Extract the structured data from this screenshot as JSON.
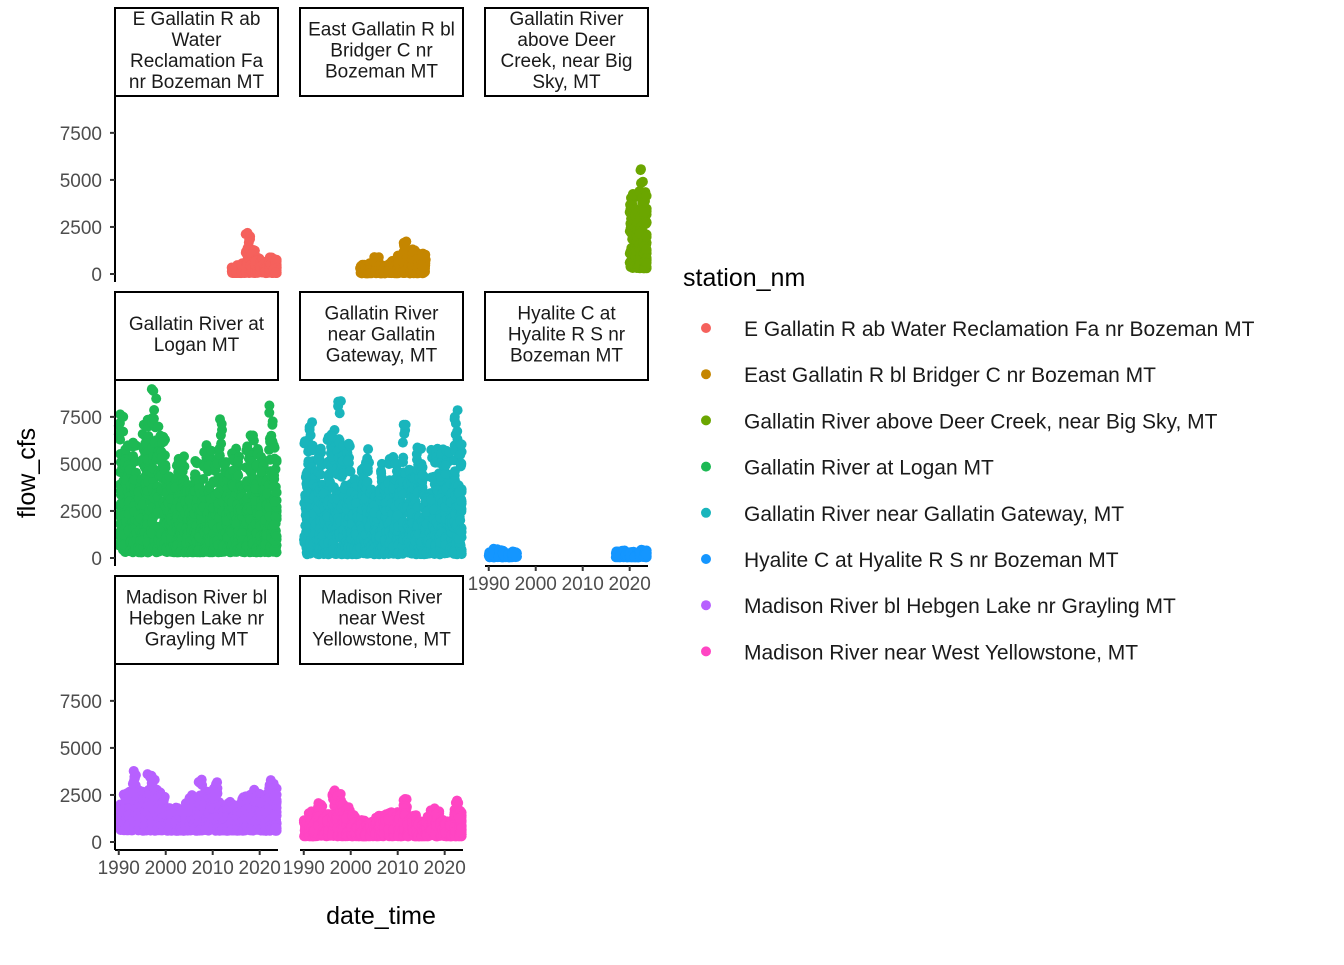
{
  "chart_data": {
    "type": "scatter",
    "facet_by": "station_nm",
    "xlabel": "date_time",
    "ylabel": "flow_cfs",
    "xlim": [
      1989.2,
      2023.9
    ],
    "ylim": [
      0,
      9300
    ],
    "x_ticks": [
      "1990",
      "2000",
      "2010",
      "2020"
    ],
    "y_ticks": [
      0,
      2500,
      5000,
      7500
    ],
    "legend": {
      "title": "station_nm",
      "position": "right"
    },
    "grid": false,
    "series": [
      {
        "name": "E Gallatin R ab Water Reclamation Fa nr Bozeman MT",
        "color": "#F5615C",
        "years": [
          2014,
          2015,
          2016,
          2017,
          2018,
          2019,
          2020,
          2021,
          2022,
          2023
        ],
        "annual_peak": [
          350,
          500,
          600,
          2200,
          1300,
          900,
          700,
          500,
          900,
          800
        ],
        "base": 50
      },
      {
        "name": "East Gallatin R bl Bridger C nr Bozeman MT",
        "color": "#C58600",
        "years": [
          2002,
          2003,
          2004,
          2005,
          2006,
          2007,
          2008,
          2009,
          2010,
          2011,
          2012,
          2013,
          2014,
          2015
        ],
        "annual_peak": [
          500,
          450,
          600,
          900,
          500,
          450,
          700,
          600,
          1100,
          1800,
          900,
          1400,
          1000,
          1100
        ],
        "base": 40
      },
      {
        "name": "Gallatin River above Deer Creek, near Big Sky, MT",
        "color": "#6BA600",
        "years": [
          2020,
          2021,
          2022,
          2023
        ],
        "annual_peak": [
          4300,
          3500,
          5600,
          4400
        ],
        "base": 300
      },
      {
        "name": "Gallatin River at Logan MT",
        "color": "#1DB954",
        "years": [
          1990,
          1991,
          1992,
          1993,
          1994,
          1995,
          1996,
          1997,
          1998,
          1999,
          2000,
          2001,
          2002,
          2003,
          2004,
          2005,
          2006,
          2007,
          2008,
          2009,
          2010,
          2011,
          2012,
          2013,
          2014,
          2015,
          2016,
          2017,
          2018,
          2019,
          2020,
          2021,
          2022,
          2023
        ],
        "annual_peak": [
          7900,
          6200,
          5000,
          6300,
          4200,
          7100,
          8100,
          9000,
          7200,
          6800,
          4500,
          3800,
          5300,
          5500,
          4200,
          4000,
          5200,
          4100,
          6000,
          5800,
          5300,
          7600,
          5100,
          4700,
          6300,
          5400,
          3900,
          6200,
          6700,
          5800,
          5700,
          4200,
          8200,
          6000
        ],
        "base": 300
      },
      {
        "name": "Gallatin River near Gallatin Gateway, MT",
        "color": "#19B5BC",
        "years": [
          1990,
          1991,
          1992,
          1993,
          1994,
          1995,
          1996,
          1997,
          1998,
          1999,
          2000,
          2001,
          2002,
          2003,
          2004,
          2005,
          2006,
          2007,
          2008,
          2009,
          2010,
          2011,
          2012,
          2013,
          2014,
          2015,
          2016,
          2017,
          2018,
          2019,
          2020,
          2021,
          2022,
          2023
        ],
        "annual_peak": [
          6300,
          7300,
          4600,
          6200,
          4000,
          6600,
          7000,
          8400,
          6100,
          6200,
          4200,
          3400,
          5000,
          5800,
          3800,
          3600,
          5000,
          3900,
          5400,
          5500,
          4800,
          7400,
          4900,
          4600,
          6100,
          5300,
          3600,
          5900,
          6100,
          5800,
          5900,
          4100,
          8100,
          6300
        ],
        "base": 200
      },
      {
        "name": "Hyalite C at Hyalite R S nr Bozeman MT",
        "color": "#1496FF",
        "years": [
          1990,
          1991,
          1992,
          1993,
          1994,
          1995,
          2017,
          2018,
          2019,
          2020,
          2021,
          2022,
          2023
        ],
        "annual_peak": [
          300,
          500,
          450,
          400,
          250,
          350,
          350,
          400,
          300,
          350,
          300,
          450,
          400
        ],
        "base": 40
      },
      {
        "name": "Madison River bl Hebgen Lake nr Grayling MT",
        "color": "#B760FF",
        "years": [
          1990,
          1991,
          1992,
          1993,
          1994,
          1995,
          1996,
          1997,
          1998,
          1999,
          2000,
          2001,
          2002,
          2003,
          2004,
          2005,
          2006,
          2007,
          2008,
          2009,
          2010,
          2011,
          2012,
          2013,
          2014,
          2015,
          2016,
          2017,
          2018,
          2019,
          2020,
          2021,
          2022,
          2023
        ],
        "annual_peak": [
          2000,
          2600,
          2700,
          3900,
          2800,
          2700,
          3800,
          3500,
          2900,
          2500,
          1800,
          1700,
          1900,
          1800,
          2100,
          2500,
          2400,
          3400,
          2700,
          2600,
          3200,
          2200,
          2000,
          2200,
          2100,
          1900,
          2400,
          2500,
          2800,
          2600,
          2400,
          2700,
          3300,
          2900
        ],
        "base": 600
      },
      {
        "name": "Madison River near West Yellowstone, MT",
        "color": "#FF45C3",
        "years": [
          1990,
          1991,
          1992,
          1993,
          1994,
          1995,
          1996,
          1997,
          1998,
          1999,
          2000,
          2001,
          2002,
          2003,
          2004,
          2005,
          2006,
          2007,
          2008,
          2009,
          2010,
          2011,
          2012,
          2013,
          2014,
          2015,
          2016,
          2017,
          2018,
          2019,
          2020,
          2021,
          2022,
          2023
        ],
        "annual_peak": [
          1200,
          1700,
          1400,
          2100,
          1300,
          1500,
          2800,
          2600,
          2100,
          1900,
          1500,
          1100,
          1200,
          1000,
          1100,
          1300,
          1400,
          1500,
          1600,
          1600,
          1500,
          2300,
          1300,
          1500,
          1200,
          1000,
          1400,
          1800,
          1700,
          1200,
          1100,
          1000,
          2200,
          1700
        ],
        "base": 300
      }
    ]
  }
}
